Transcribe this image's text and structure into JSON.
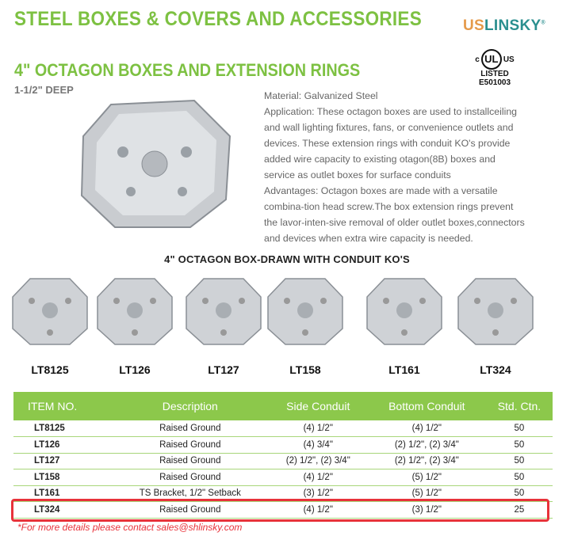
{
  "header": {
    "title": "STEEL BOXES & COVERS AND ACCESSORIES",
    "logo_us": "US",
    "logo_rest": "LINSKY",
    "logo_mark": "®"
  },
  "product": {
    "subtitle": "4\" OCTAGON BOXES AND EXTENSION RINGS",
    "depth": "1-1/2\" DEEP",
    "description": [
      "Material:  Galvanized Steel",
      "Application:  These octagon boxes are used to installceiling and wall lighting fixtures, fans, or convenience outlets and devices. These extension rings with conduit KO's  provide added wire capacity to existing otagon(8B) boxes and service as outlet boxes for surface conduits",
      "Advantages: Octagon boxes are made with a versatile combina-tion head screw.The box extension rings prevent the lavor-inten-sive removal of older outlet boxes,connectors and devices when extra wire capacity is needed."
    ]
  },
  "ul": {
    "c": "c",
    "mark": "UL",
    "us": "US",
    "listed": "LISTED",
    "number": "E501003"
  },
  "section_title": "4\" OCTAGON BOX-DRAWN WITH CONDUIT KO'S",
  "products": [
    "LT8125",
    "LT126",
    "LT127",
    "LT158",
    "LT161",
    "LT324"
  ],
  "table": {
    "headers": [
      "ITEM NO.",
      "Description",
      "Side Conduit",
      "Bottom Conduit",
      "Std. Ctn."
    ],
    "rows": [
      [
        "LT8125",
        "Raised Ground",
        "(4) 1/2\"",
        "(4) 1/2\"",
        "50"
      ],
      [
        "LT126",
        "Raised Ground",
        "(4) 3/4\"",
        "(2) 1/2\", (2) 3/4\"",
        "50"
      ],
      [
        "LT127",
        "Raised Ground",
        "(2) 1/2\", (2) 3/4\"",
        "(2) 1/2\", (2) 3/4\"",
        "50"
      ],
      [
        "LT158",
        "Raised Ground",
        "(4) 1/2\"",
        "(5) 1/2\"",
        "50"
      ],
      [
        "LT161",
        "TS Bracket, 1/2\" Setback",
        "(3) 1/2\"",
        "(5) 1/2\"",
        "50"
      ],
      [
        "LT324",
        "Raised Ground",
        "(4) 1/2\"",
        "(3) 1/2\"",
        "25"
      ]
    ],
    "highlighted_row": "LT324"
  },
  "footnote": "*For more details please contact sales@shlinsky.com",
  "colors": {
    "green": "#7dc142",
    "header_green": "#8cc84b",
    "highlight": "#e8323a"
  }
}
